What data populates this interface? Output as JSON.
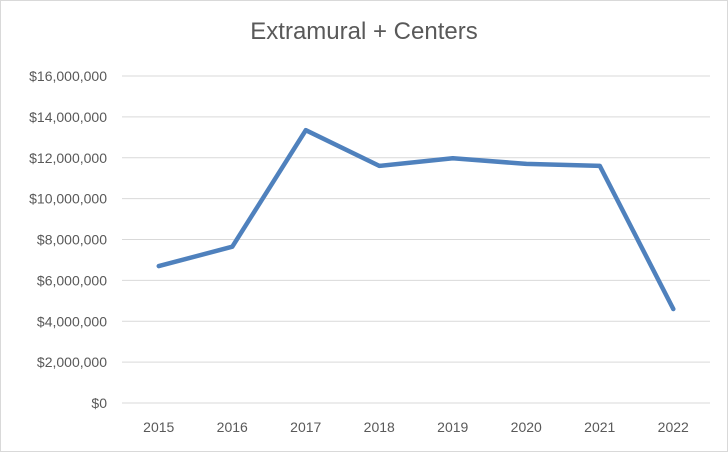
{
  "chart_data": {
    "type": "line",
    "title": "Extramural + Centers",
    "xlabel": "",
    "ylabel": "",
    "categories": [
      "2015",
      "2016",
      "2017",
      "2018",
      "2019",
      "2020",
      "2021",
      "2022"
    ],
    "series": [
      {
        "values": [
          6700000,
          7650000,
          13350000,
          11600000,
          11980000,
          11700000,
          11600000,
          4600000
        ],
        "color": "#4f81bd"
      }
    ],
    "ylim": [
      0,
      16000000
    ],
    "yticks": [
      0,
      2000000,
      4000000,
      6000000,
      8000000,
      10000000,
      12000000,
      14000000,
      16000000
    ],
    "ytick_labels": [
      "$0",
      "$2,000,000",
      "$4,000,000",
      "$6,000,000",
      "$8,000,000",
      "$10,000,000",
      "$12,000,000",
      "$14,000,000",
      "$16,000,000"
    ],
    "grid": true,
    "legend": "none",
    "colors": {
      "gridline": "#d9d9d9",
      "text": "#595959",
      "line": "#4f81bd"
    }
  }
}
